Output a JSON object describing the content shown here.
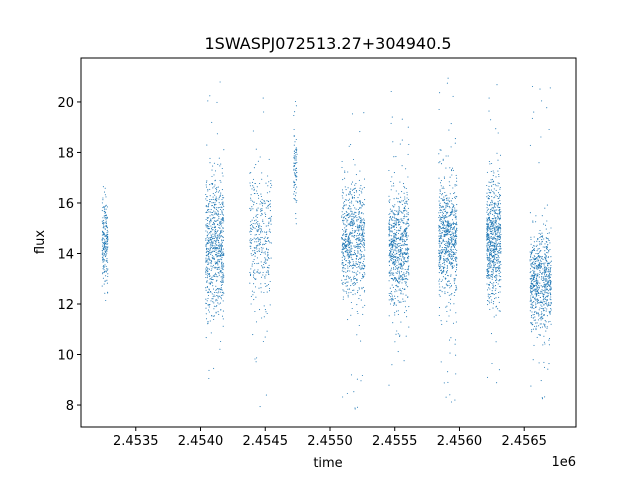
{
  "chart_data": {
    "type": "scatter",
    "title": "1SWASPJ072513.27+304940.5",
    "xlabel": "time",
    "ylabel": "flux",
    "x_offset_label": "1e6",
    "xlim": [
      2453077,
      2456900
    ],
    "ylim": [
      7.13,
      21.74
    ],
    "x_ticks": [
      2453500,
      2454000,
      2454500,
      2455000,
      2455500,
      2456000,
      2456500
    ],
    "x_tick_labels": [
      "2.4535",
      "2.4540",
      "2.4545",
      "2.4550",
      "2.4555",
      "2.4560",
      "2.4565"
    ],
    "y_ticks": [
      8,
      10,
      12,
      14,
      16,
      18,
      20
    ],
    "y_tick_labels": [
      "8",
      "10",
      "12",
      "14",
      "16",
      "18",
      "20"
    ],
    "grid": false,
    "color": "#1f77b4",
    "observing_seasons": [
      {
        "t_start": 2453240,
        "t_end": 2453285,
        "flux_center": 14.5,
        "flux_spread": 0.9,
        "count": 200,
        "flux_min": 11.7,
        "flux_max": 16.8
      },
      {
        "t_start": 2454040,
        "t_end": 2454180,
        "flux_center": 14.2,
        "flux_spread": 1.4,
        "count": 700,
        "flux_min": 8.6,
        "flux_max": 21.1
      },
      {
        "t_start": 2454380,
        "t_end": 2454550,
        "flux_center": 14.6,
        "flux_spread": 1.3,
        "count": 350,
        "flux_min": 7.9,
        "flux_max": 20.8
      },
      {
        "t_start": 2454720,
        "t_end": 2454745,
        "flux_center": 17.4,
        "flux_spread": 0.9,
        "count": 80,
        "flux_min": 14.8,
        "flux_max": 20.4
      },
      {
        "t_start": 2455090,
        "t_end": 2455270,
        "flux_center": 14.5,
        "flux_spread": 1.1,
        "count": 700,
        "flux_min": 7.7,
        "flux_max": 19.9
      },
      {
        "t_start": 2455455,
        "t_end": 2455610,
        "flux_center": 14.2,
        "flux_spread": 1.1,
        "count": 700,
        "flux_min": 7.9,
        "flux_max": 20.7
      },
      {
        "t_start": 2455840,
        "t_end": 2455980,
        "flux_center": 14.6,
        "flux_spread": 1.2,
        "count": 700,
        "flux_min": 7.9,
        "flux_max": 21.1
      },
      {
        "t_start": 2456210,
        "t_end": 2456320,
        "flux_center": 14.6,
        "flux_spread": 1.2,
        "count": 700,
        "flux_min": 7.9,
        "flux_max": 20.9
      },
      {
        "t_start": 2456545,
        "t_end": 2456710,
        "flux_center": 12.9,
        "flux_spread": 0.95,
        "count": 700,
        "flux_min": 8.1,
        "flux_max": 20.9
      }
    ]
  }
}
